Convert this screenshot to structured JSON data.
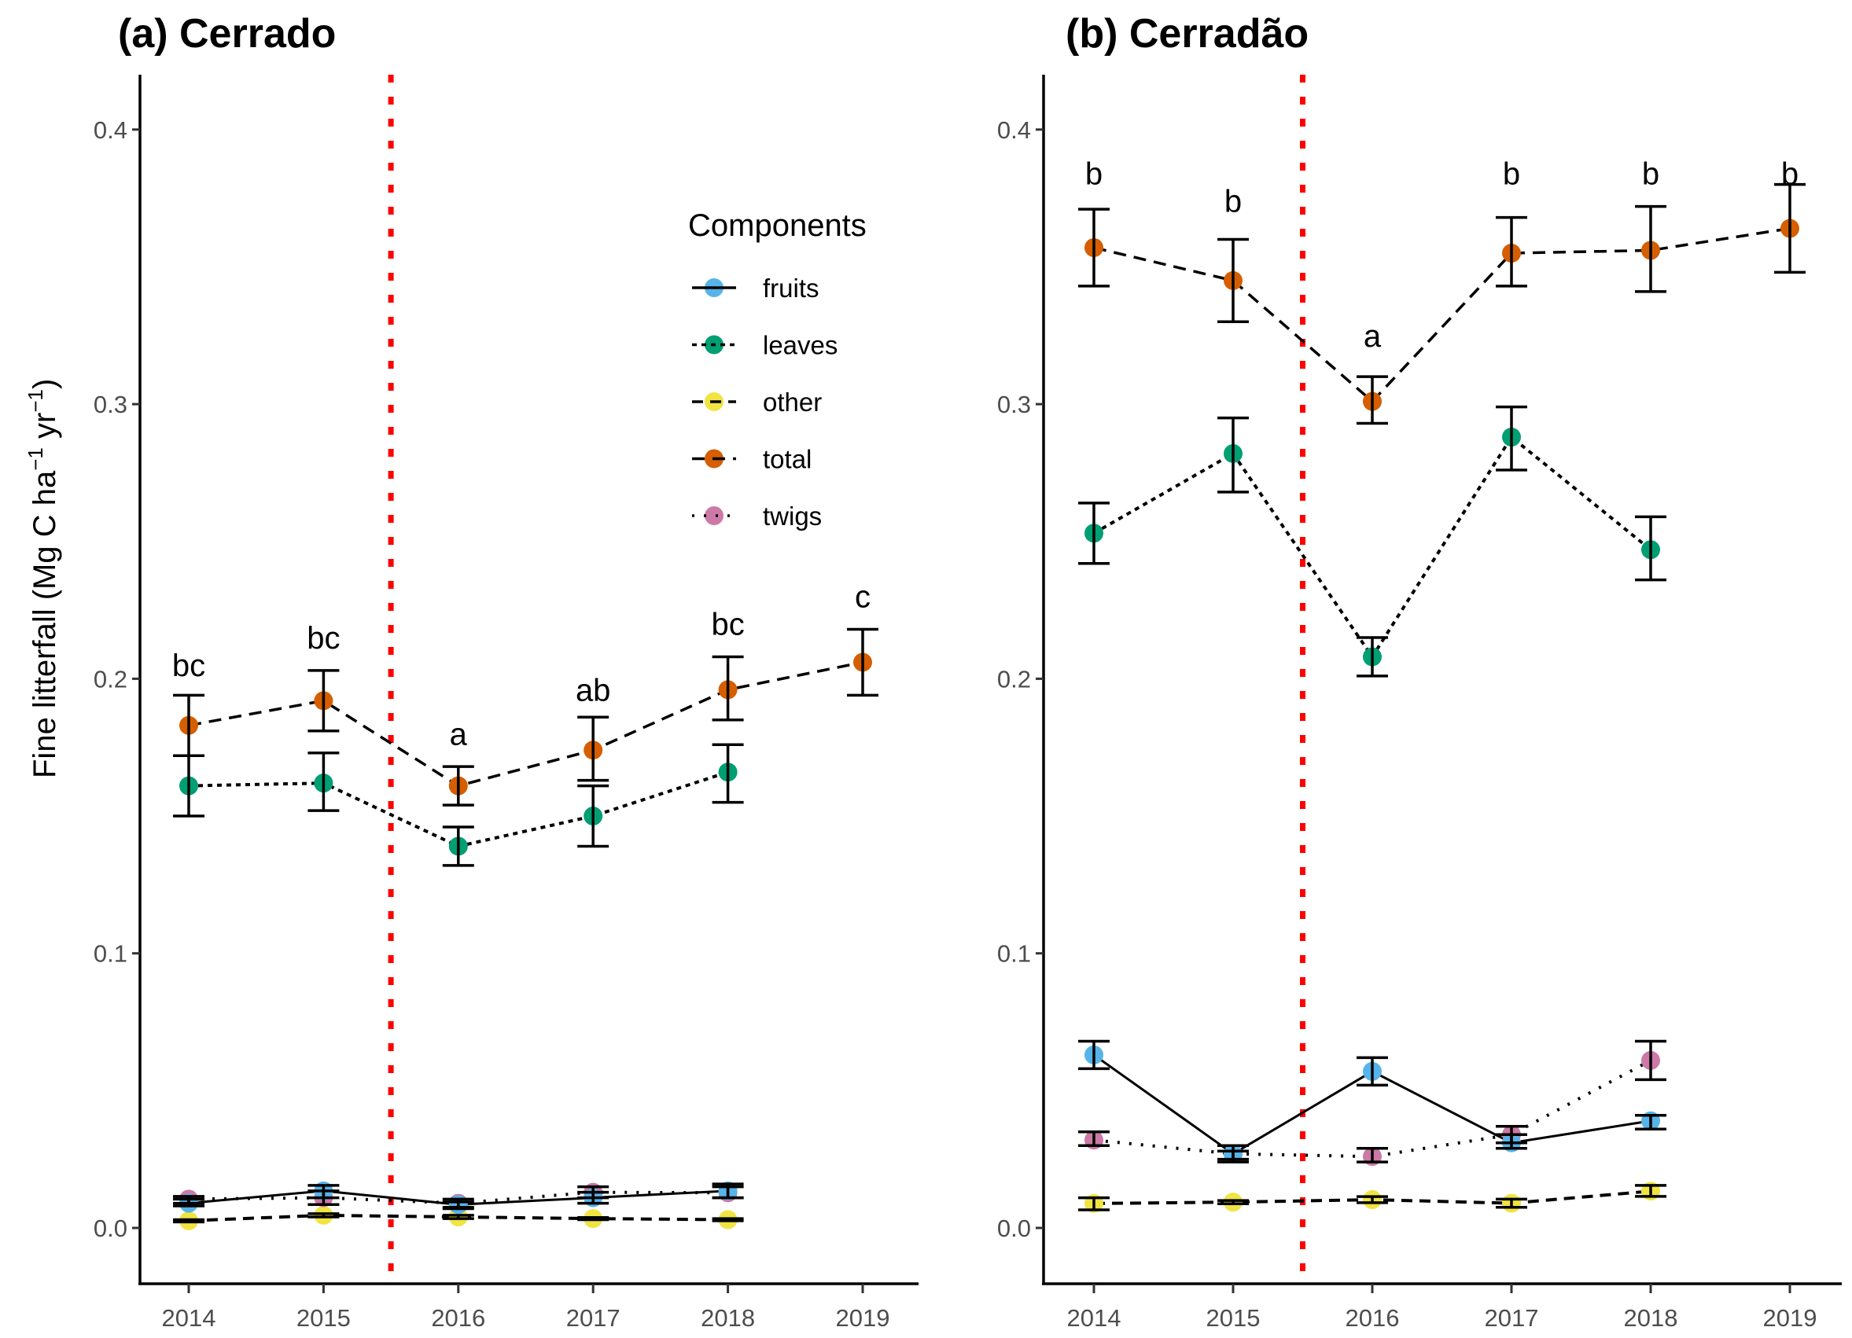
{
  "chart_data": {
    "type": "line",
    "ylabel": "Fine litterfall (Mg C ha⁻¹ yr⁻¹)",
    "ylabel_parts": {
      "main": "Fine litterfall (Mg C ha",
      "sup1": "−1",
      "mid": " yr",
      "sup2": "−1",
      "end": ")"
    },
    "ylim": [
      -0.0205,
      0.42
    ],
    "yticks": [
      0.0,
      0.1,
      0.2,
      0.3,
      0.4
    ],
    "ytick_labels": [
      "0.0",
      "0.1",
      "0.2",
      "0.3",
      "0.4"
    ],
    "xticks": [
      2014,
      2015,
      2016,
      2017,
      2018,
      2019
    ],
    "xtick_labels": [
      "2014",
      "2015",
      "2016",
      "2017",
      "2018",
      "2019"
    ],
    "vline": {
      "x": 2015.5,
      "color": "#ff0000",
      "style": "dotted"
    },
    "legend": {
      "title": "Components",
      "placement": "top-right of panel a",
      "entries": [
        {
          "name": "fruits",
          "color": "#56b4e9",
          "linestyle": "solid"
        },
        {
          "name": "leaves",
          "color": "#009e73",
          "linestyle": "dotted-dashed"
        },
        {
          "name": "other",
          "color": "#f0e442",
          "linestyle": "dashed"
        },
        {
          "name": "total",
          "color": "#d55e00",
          "linestyle": "longdash"
        },
        {
          "name": "twigs",
          "color": "#cc79a7",
          "linestyle": "dotted"
        }
      ]
    },
    "panels": [
      {
        "title": "(a) Cerrado",
        "series": [
          {
            "name": "total",
            "x": [
              2014,
              2015,
              2016,
              2017,
              2018,
              2019
            ],
            "values": [
              0.183,
              0.192,
              0.161,
              0.174,
              0.196,
              0.206
            ],
            "lower": [
              0.172,
              0.181,
              0.154,
              0.163,
              0.185,
              0.194
            ],
            "upper": [
              0.194,
              0.203,
              0.168,
              0.186,
              0.208,
              0.218
            ]
          },
          {
            "name": "leaves",
            "x": [
              2014,
              2015,
              2016,
              2017,
              2018
            ],
            "values": [
              0.161,
              0.162,
              0.139,
              0.15,
              0.166
            ],
            "lower": [
              0.15,
              0.152,
              0.132,
              0.139,
              0.155
            ],
            "upper": [
              0.172,
              0.173,
              0.146,
              0.161,
              0.176
            ]
          },
          {
            "name": "fruits",
            "x": [
              2014,
              2015,
              2016,
              2017,
              2018
            ],
            "values": [
              0.009,
              0.0135,
              0.0085,
              0.011,
              0.0135
            ],
            "lower": [
              0.008,
              0.011,
              0.007,
              0.009,
              0.011
            ],
            "upper": [
              0.0105,
              0.0155,
              0.0095,
              0.013,
              0.016
            ]
          },
          {
            "name": "twigs",
            "x": [
              2014,
              2015,
              2016,
              2017,
              2018
            ],
            "values": [
              0.0105,
              0.011,
              0.009,
              0.013,
              0.0128
            ],
            "lower": [
              0.009,
              0.0085,
              0.0075,
              0.011,
              0.011
            ],
            "upper": [
              0.0115,
              0.0135,
              0.0105,
              0.015,
              0.015
            ]
          },
          {
            "name": "other",
            "x": [
              2014,
              2015,
              2016,
              2017,
              2018
            ],
            "values": [
              0.0026,
              0.0046,
              0.004,
              0.0034,
              0.003
            ],
            "lower": [
              0.0022,
              0.004,
              0.0034,
              0.003,
              0.0026
            ],
            "upper": [
              0.003,
              0.0052,
              0.0046,
              0.0038,
              0.0034
            ]
          }
        ],
        "letters": [
          {
            "x": 2014,
            "y": 0.205,
            "text": "bc"
          },
          {
            "x": 2015,
            "y": 0.215,
            "text": "bc"
          },
          {
            "x": 2016,
            "y": 0.18,
            "text": "a"
          },
          {
            "x": 2017,
            "y": 0.196,
            "text": "ab"
          },
          {
            "x": 2018,
            "y": 0.22,
            "text": "bc"
          },
          {
            "x": 2019,
            "y": 0.23,
            "text": "c"
          }
        ]
      },
      {
        "title": "(b) Cerradão",
        "series": [
          {
            "name": "total",
            "x": [
              2014,
              2015,
              2016,
              2017,
              2018,
              2019
            ],
            "values": [
              0.357,
              0.345,
              0.301,
              0.355,
              0.356,
              0.364
            ],
            "lower": [
              0.343,
              0.33,
              0.293,
              0.343,
              0.341,
              0.348
            ],
            "upper": [
              0.371,
              0.36,
              0.31,
              0.368,
              0.372,
              0.38
            ]
          },
          {
            "name": "leaves",
            "x": [
              2014,
              2015,
              2016,
              2017,
              2018
            ],
            "values": [
              0.253,
              0.282,
              0.208,
              0.288,
              0.247
            ],
            "lower": [
              0.242,
              0.268,
              0.201,
              0.276,
              0.236
            ],
            "upper": [
              0.264,
              0.295,
              0.215,
              0.299,
              0.259
            ]
          },
          {
            "name": "fruits",
            "x": [
              2014,
              2015,
              2016,
              2017,
              2018
            ],
            "values": [
              0.063,
              0.027,
              0.057,
              0.031,
              0.039
            ],
            "lower": [
              0.058,
              0.024,
              0.052,
              0.029,
              0.036
            ],
            "upper": [
              0.068,
              0.028,
              0.062,
              0.034,
              0.041
            ]
          },
          {
            "name": "twigs",
            "x": [
              2014,
              2015,
              2016,
              2017,
              2018
            ],
            "values": [
              0.032,
              0.027,
              0.026,
              0.034,
              0.061
            ],
            "lower": [
              0.03,
              0.025,
              0.024,
              0.031,
              0.054
            ],
            "upper": [
              0.035,
              0.03,
              0.029,
              0.037,
              0.068
            ]
          },
          {
            "name": "other",
            "x": [
              2014,
              2015,
              2016,
              2017,
              2018
            ],
            "values": [
              0.0089,
              0.0094,
              0.0103,
              0.009,
              0.0134
            ],
            "lower": [
              0.0066,
              0.0088,
              0.0092,
              0.0075,
              0.0115
            ],
            "upper": [
              0.011,
              0.01,
              0.0114,
              0.0105,
              0.0155
            ]
          }
        ],
        "letters": [
          {
            "x": 2014,
            "y": 0.384,
            "text": "b"
          },
          {
            "x": 2015,
            "y": 0.374,
            "text": "b"
          },
          {
            "x": 2016,
            "y": 0.325,
            "text": "a"
          },
          {
            "x": 2017,
            "y": 0.384,
            "text": "b"
          },
          {
            "x": 2018,
            "y": 0.384,
            "text": "b"
          },
          {
            "x": 2019,
            "y": 0.384,
            "text": "b"
          }
        ]
      }
    ]
  }
}
